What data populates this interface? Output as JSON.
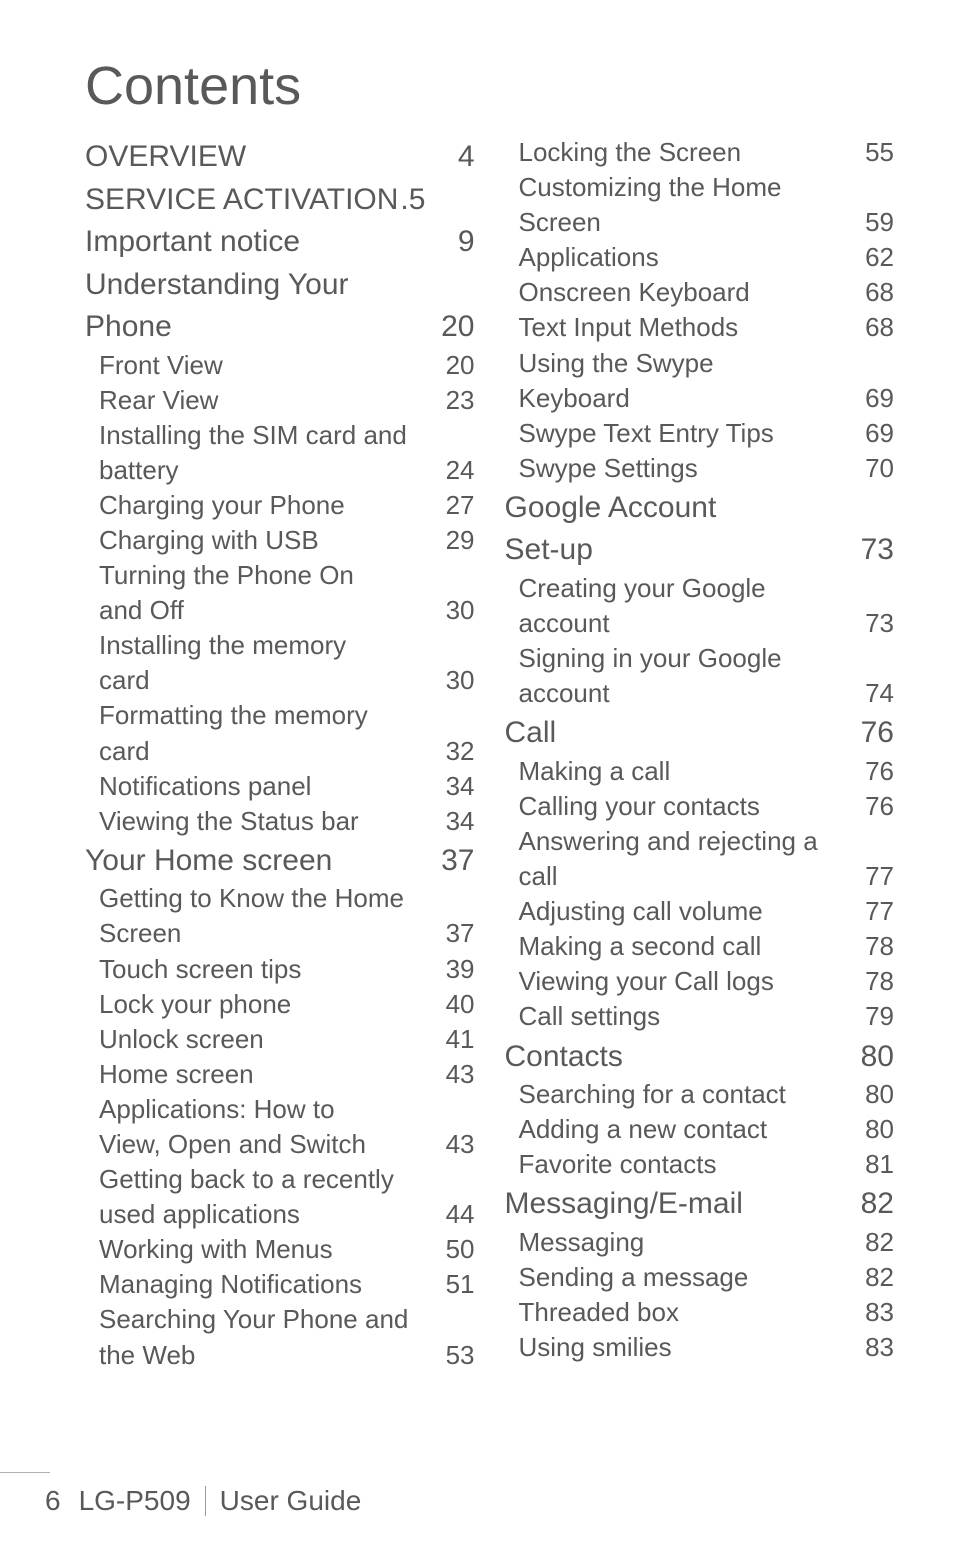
{
  "title": "Contents",
  "footer": {
    "page_number": "6",
    "model": "LG-P509",
    "guide": "User Guide"
  },
  "left_col": [
    {
      "level": 1,
      "label": "OVERVIEW",
      "page": "4"
    },
    {
      "level": 1,
      "label": "SERVICE ACTIVATION",
      "page": "5",
      "tight": true
    },
    {
      "level": 1,
      "label": "Important notice",
      "page": "9"
    },
    {
      "level": 1,
      "label": "Understanding Your",
      "nopage": true
    },
    {
      "level": 1,
      "label": "Phone",
      "page": "20",
      "cont": true
    },
    {
      "level": 2,
      "label": "Front View",
      "page": "20"
    },
    {
      "level": 2,
      "label": "Rear View",
      "page": "23"
    },
    {
      "level": 2,
      "label": "Installing the SIM card and",
      "nopage": true
    },
    {
      "level": 2,
      "label": "battery",
      "page": "24",
      "cont": true
    },
    {
      "level": 2,
      "label": "Charging your Phone",
      "page": "27"
    },
    {
      "level": 2,
      "label": "Charging with USB",
      "page": "29"
    },
    {
      "level": 2,
      "label": "Turning the Phone On",
      "nopage": true
    },
    {
      "level": 2,
      "label": "and Off",
      "page": "30",
      "cont": true
    },
    {
      "level": 2,
      "label": "Installing the memory",
      "nopage": true
    },
    {
      "level": 2,
      "label": "card",
      "page": "30",
      "cont": true
    },
    {
      "level": 2,
      "label": "Formatting the memory",
      "nopage": true
    },
    {
      "level": 2,
      "label": "card",
      "page": "32",
      "cont": true
    },
    {
      "level": 2,
      "label": "Notifications panel",
      "page": "34"
    },
    {
      "level": 2,
      "label": "Viewing the Status bar",
      "page": "34"
    },
    {
      "level": 1,
      "label": "Your Home screen",
      "page": "37"
    },
    {
      "level": 2,
      "label": "Getting to Know the Home",
      "nopage": true
    },
    {
      "level": 2,
      "label": "Screen",
      "page": "37",
      "cont": true
    },
    {
      "level": 2,
      "label": "Touch screen tips",
      "page": "39"
    },
    {
      "level": 2,
      "label": "Lock your phone",
      "page": "40"
    },
    {
      "level": 2,
      "label": "Unlock screen",
      "page": "41"
    },
    {
      "level": 2,
      "label": "Home screen ",
      "page": "43"
    },
    {
      "level": 2,
      "label": "Applications: How to",
      "nopage": true
    },
    {
      "level": 2,
      "label": "View, Open and Switch",
      "page": "43",
      "cont": true
    },
    {
      "level": 2,
      "label": "Getting back to a recently",
      "nopage": true
    },
    {
      "level": 2,
      "label": "used applications",
      "page": "44",
      "cont": true
    },
    {
      "level": 2,
      "label": "Working with Menus",
      "page": "50"
    },
    {
      "level": 2,
      "label": "Managing Notifications",
      "page": "51"
    },
    {
      "level": 2,
      "label": "Searching Your Phone and",
      "nopage": true
    },
    {
      "level": 2,
      "label": "the Web",
      "page": "53",
      "cont": true
    }
  ],
  "right_col": [
    {
      "level": 2,
      "label": "Locking the Screen",
      "page": "55"
    },
    {
      "level": 2,
      "label": "Customizing the Home",
      "nopage": true
    },
    {
      "level": 2,
      "label": "Screen",
      "page": "59",
      "cont": true
    },
    {
      "level": 2,
      "label": "Applications",
      "page": "62"
    },
    {
      "level": 2,
      "label": "Onscreen Keyboard",
      "page": "68"
    },
    {
      "level": 2,
      "label": "Text Input Methods",
      "page": "68"
    },
    {
      "level": 2,
      "label": "Using the Swype",
      "nopage": true
    },
    {
      "level": 2,
      "label": "Keyboard",
      "page": "69",
      "cont": true
    },
    {
      "level": 2,
      "label": "Swype Text Entry Tips",
      "page": "69"
    },
    {
      "level": 2,
      "label": "Swype Settings",
      "page": "70"
    },
    {
      "level": 1,
      "label": "Google Account",
      "nopage": true
    },
    {
      "level": 1,
      "label": "Set-up",
      "page": "73",
      "cont": true
    },
    {
      "level": 2,
      "label": "Creating your Google",
      "nopage": true
    },
    {
      "level": 2,
      "label": "account",
      "page": "73",
      "cont": true
    },
    {
      "level": 2,
      "label": "Signing in your Google",
      "nopage": true
    },
    {
      "level": 2,
      "label": "account",
      "page": "74",
      "cont": true
    },
    {
      "level": 1,
      "label": "Call",
      "page": "76"
    },
    {
      "level": 2,
      "label": "Making a call",
      "page": "76"
    },
    {
      "level": 2,
      "label": "Calling your contacts",
      "page": "76"
    },
    {
      "level": 2,
      "label": "Answering and rejecting a",
      "nopage": true
    },
    {
      "level": 2,
      "label": "call",
      "page": "77",
      "cont": true
    },
    {
      "level": 2,
      "label": "Adjusting call volume",
      "page": "77"
    },
    {
      "level": 2,
      "label": "Making a second call",
      "page": "78"
    },
    {
      "level": 2,
      "label": "Viewing your Call logs",
      "page": "78"
    },
    {
      "level": 2,
      "label": "Call settings",
      "page": "79"
    },
    {
      "level": 1,
      "label": "Contacts",
      "page": "80"
    },
    {
      "level": 2,
      "label": "Searching for a contact",
      "page": "80"
    },
    {
      "level": 2,
      "label": "Adding a new contact",
      "page": "80"
    },
    {
      "level": 2,
      "label": "Favorite contacts",
      "page": "81"
    },
    {
      "level": 1,
      "label": "Messaging/E-mail",
      "page": "82"
    },
    {
      "level": 2,
      "label": "Messaging",
      "page": "82"
    },
    {
      "level": 2,
      "label": "Sending a message",
      "page": "82"
    },
    {
      "level": 2,
      "label": "Threaded box ",
      "page": "83"
    },
    {
      "level": 2,
      "label": "Using smilies",
      "page": "83"
    }
  ]
}
